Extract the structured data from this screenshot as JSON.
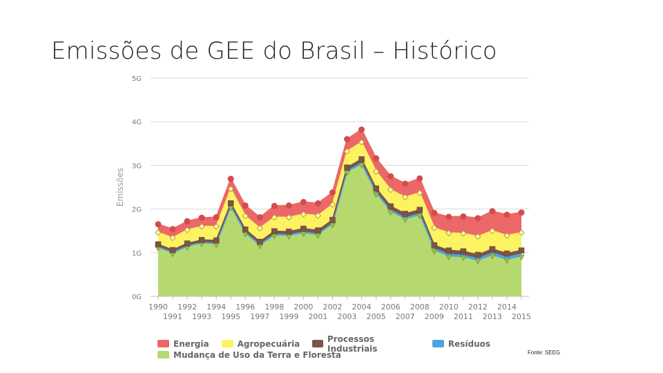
{
  "slide": {
    "title": "Emissões de GEE do Brasil – Histórico",
    "source": "Fonte: SEEG"
  },
  "chart_data": {
    "type": "area",
    "stacked": true,
    "ylabel": "Emissões",
    "xlabel": "",
    "ylim": [
      0,
      5
    ],
    "yticks": [
      "0G",
      "1G",
      "2G",
      "3G",
      "4G",
      "5G"
    ],
    "x": [
      "1990",
      "1991",
      "1992",
      "1993",
      "1994",
      "1995",
      "1996",
      "1997",
      "1998",
      "1999",
      "2000",
      "2001",
      "2002",
      "2003",
      "2004",
      "2005",
      "2006",
      "2007",
      "2008",
      "2009",
      "2010",
      "2011",
      "2012",
      "2013",
      "2014",
      "2015"
    ],
    "grid": true,
    "legend_position": "bottom",
    "series": [
      {
        "name": "Mudança de Uso da Terra e Floresta",
        "color": "#b5d96e",
        "marker": "triangle-down",
        "values": [
          1.1,
          0.97,
          1.12,
          1.2,
          1.18,
          2.03,
          1.43,
          1.15,
          1.38,
          1.37,
          1.43,
          1.39,
          1.63,
          2.83,
          3.0,
          2.33,
          1.92,
          1.75,
          1.84,
          1.03,
          0.9,
          0.88,
          0.8,
          0.92,
          0.82,
          0.9
        ]
      },
      {
        "name": "Resíduos",
        "color": "#4fa3e0",
        "marker": "none",
        "values": [
          0.03,
          0.03,
          0.03,
          0.03,
          0.03,
          0.03,
          0.03,
          0.03,
          0.04,
          0.04,
          0.04,
          0.04,
          0.04,
          0.04,
          0.05,
          0.05,
          0.05,
          0.05,
          0.05,
          0.06,
          0.06,
          0.06,
          0.06,
          0.07,
          0.07,
          0.07
        ]
      },
      {
        "name": "Processos Industriais",
        "color": "#7b5548",
        "marker": "square",
        "values": [
          0.06,
          0.06,
          0.06,
          0.06,
          0.07,
          0.07,
          0.07,
          0.07,
          0.07,
          0.07,
          0.08,
          0.08,
          0.08,
          0.08,
          0.09,
          0.09,
          0.09,
          0.09,
          0.09,
          0.08,
          0.09,
          0.09,
          0.09,
          0.09,
          0.09,
          0.08
        ]
      },
      {
        "name": "Agropecuária",
        "color": "#fdf262",
        "marker": "diamond",
        "values": [
          0.27,
          0.28,
          0.31,
          0.31,
          0.32,
          0.33,
          0.31,
          0.31,
          0.32,
          0.33,
          0.33,
          0.34,
          0.35,
          0.37,
          0.39,
          0.39,
          0.38,
          0.38,
          0.39,
          0.4,
          0.4,
          0.41,
          0.42,
          0.42,
          0.41,
          0.41
        ]
      },
      {
        "name": "Energia",
        "color": "#ec6767",
        "marker": "circle",
        "values": [
          0.19,
          0.2,
          0.2,
          0.2,
          0.21,
          0.23,
          0.24,
          0.25,
          0.26,
          0.27,
          0.28,
          0.28,
          0.28,
          0.28,
          0.29,
          0.3,
          0.31,
          0.31,
          0.33,
          0.34,
          0.37,
          0.39,
          0.42,
          0.45,
          0.48,
          0.46
        ]
      }
    ],
    "legend_order": [
      "Energia",
      "Agropecuária",
      "Processos Industriais",
      "Resíduos",
      "Mudança de Uso da Terra e Floresta"
    ]
  }
}
